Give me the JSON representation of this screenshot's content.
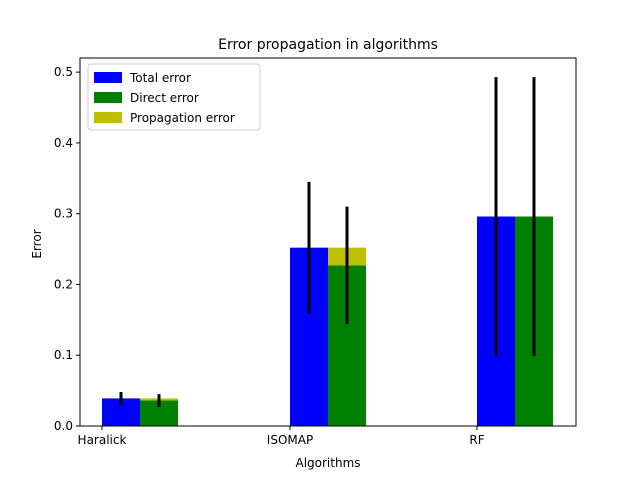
{
  "chart_data": {
    "type": "bar",
    "title": "Error propagation in algorithms",
    "xlabel": "Algorithms",
    "ylabel": "Error",
    "categories": [
      "Haralick",
      "ISOMAP",
      "RF"
    ],
    "ylim": [
      0,
      0.52
    ],
    "yticks": [
      "0.0",
      "0.1",
      "0.2",
      "0.3",
      "0.4",
      "0.5"
    ],
    "grid": false,
    "legend_position": "top-left",
    "series": [
      {
        "name": "Total error",
        "color": "#0000ff",
        "values": [
          0.039,
          0.252,
          0.296
        ],
        "error": [
          0.009,
          0.093,
          0.197
        ]
      },
      {
        "name": "Direct error",
        "color": "#008000",
        "values": [
          0.036,
          0.227,
          0.296
        ],
        "error": [
          0.009,
          0.083,
          0.197
        ]
      },
      {
        "name": "Propagation error",
        "color": "#bfbf00",
        "values": [
          0.003,
          0.025,
          0.0
        ]
      }
    ]
  }
}
